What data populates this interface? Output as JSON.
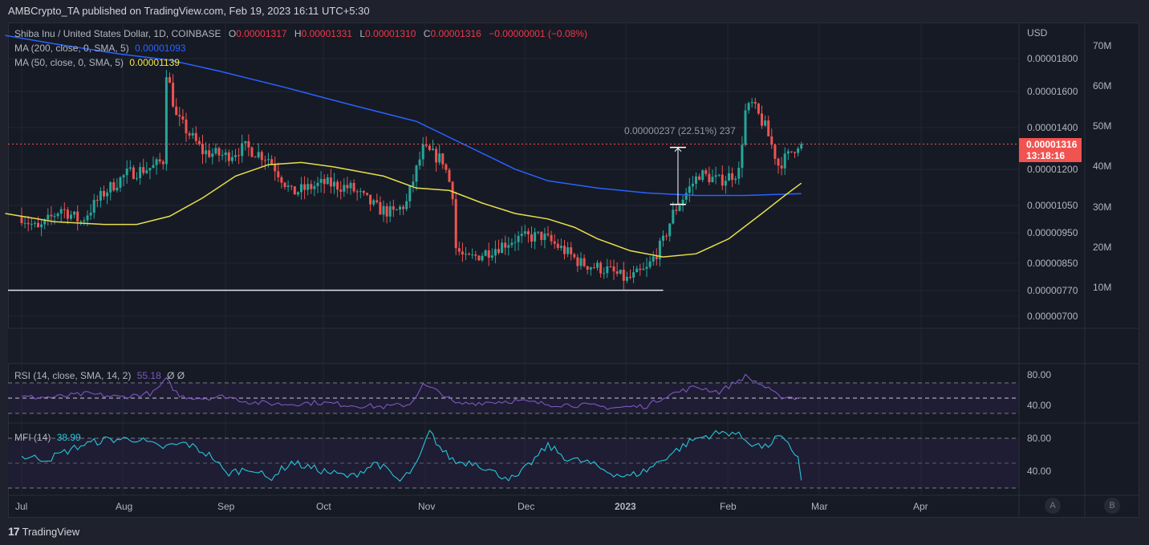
{
  "header": {
    "published": "AMBCrypto_TA published on TradingView.com, Feb 19, 2023 16:11 UTC+5:30"
  },
  "legend": {
    "symbol": "Shiba Inu / United States Dollar, 1D, COINBASE",
    "open_label": "O",
    "open": "0.00001317",
    "high_label": "H",
    "high": "0.00001331",
    "low_label": "L",
    "low": "0.00001310",
    "close_label": "C",
    "close": "0.00001316",
    "change": "−0.00000001 (−0.08%)",
    "ma200_label": "MA (200, close, 0, SMA, 5)",
    "ma200_value": "0.00001093",
    "ma50_label": "MA (50, close, 0, SMA, 5)",
    "ma50_value": "0.00001139",
    "rsi_label": "RSI (14, close, SMA, 14, 2)",
    "rsi_value": "55.18",
    "rsi_extra": "Ø Ø",
    "mfi_label": "MFI (14)",
    "mfi_value": "38.99"
  },
  "price_axis": {
    "currency": "USD",
    "ticks": [
      "0.00001800",
      "0.00001600",
      "0.00001400",
      "0.00001200",
      "0.00001050",
      "0.00000950",
      "0.00000850",
      "0.00000770",
      "0.00000700"
    ],
    "last_price": "0.00001316",
    "countdown": "13:18:16"
  },
  "volume_axis": {
    "ticks": [
      "70M",
      "60M",
      "50M",
      "40M",
      "30M",
      "20M",
      "10M"
    ]
  },
  "rsi_axis": {
    "ticks": [
      "80.00",
      "40.00"
    ]
  },
  "mfi_axis": {
    "ticks": [
      "80.00",
      "40.00"
    ]
  },
  "time_axis": {
    "ticks": [
      "Jul",
      "Aug",
      "Sep",
      "Oct",
      "Nov",
      "Dec",
      "2023",
      "Feb",
      "Mar",
      "Apr"
    ]
  },
  "measure": {
    "label": "0.00000237 (22.51%) 237"
  },
  "scale_buttons": {
    "a": "A",
    "b": "B"
  },
  "footer": {
    "brand": "TradingView",
    "logo": "17"
  },
  "colors": {
    "up": "#26a69a",
    "down": "#ef5350",
    "ma200": "#2962ff",
    "ma50": "#e8de4c",
    "rsi": "#7e57c2",
    "mfi": "#26c6da",
    "last_price": "#f05350",
    "bg": "#161a25"
  },
  "chart_data": {
    "type": "candlestick",
    "title": "Shiba Inu / United States Dollar, 1D, COINBASE",
    "ylabel": "USD",
    "yscale": "log",
    "ylim": [
      6.8e-06,
      1.95e-05
    ],
    "x_ticks": [
      "Jul",
      "Aug",
      "Sep",
      "Oct",
      "Nov",
      "Dec",
      "2023",
      "Feb",
      "Mar",
      "Apr"
    ],
    "last": {
      "open": 1.317e-05,
      "high": 1.331e-05,
      "low": 1.31e-05,
      "close": 1.316e-05,
      "change": -1e-08,
      "change_pct": -0.08
    },
    "support_line": {
      "value": 7.7e-06,
      "from": "2022-07-01",
      "to": "2023-01-08"
    },
    "measure": {
      "delta": 2.37e-06,
      "pct": 22.51,
      "bars": 237,
      "from_price": 1.05e-05,
      "to_price": 1.3e-05
    },
    "candles_sampled": [
      {
        "d": "2022-07-01",
        "c": 1.01e-05
      },
      {
        "d": "2022-07-10",
        "c": 1.04e-05
      },
      {
        "d": "2022-07-20",
        "c": 1.18e-05
      },
      {
        "d": "2022-07-30",
        "c": 1.21e-05
      },
      {
        "d": "2022-08-10",
        "c": 1.24e-05
      },
      {
        "d": "2022-08-14",
        "c": 1.72e-05
      },
      {
        "d": "2022-08-20",
        "c": 1.36e-05
      },
      {
        "d": "2022-08-30",
        "c": 1.26e-05
      },
      {
        "d": "2022-09-10",
        "c": 1.3e-05
      },
      {
        "d": "2022-09-20",
        "c": 1.1e-05
      },
      {
        "d": "2022-10-01",
        "c": 1.12e-05
      },
      {
        "d": "2022-10-15",
        "c": 1.04e-05
      },
      {
        "d": "2022-10-25",
        "c": 1.07e-05
      },
      {
        "d": "2022-10-30",
        "c": 1.29e-05
      },
      {
        "d": "2022-11-07",
        "c": 1.25e-05
      },
      {
        "d": "2022-11-09",
        "c": 9e-06
      },
      {
        "d": "2022-11-20",
        "c": 8.8e-06
      },
      {
        "d": "2022-12-01",
        "c": 9.3e-06
      },
      {
        "d": "2022-12-15",
        "c": 8.4e-06
      },
      {
        "d": "2022-12-30",
        "c": 8e-06
      },
      {
        "d": "2023-01-10",
        "c": 1e-05
      },
      {
        "d": "2023-01-14",
        "c": 1.17e-05
      },
      {
        "d": "2023-01-25",
        "c": 1.16e-05
      },
      {
        "d": "2023-02-04",
        "c": 1.5e-05
      },
      {
        "d": "2023-02-10",
        "c": 1.21e-05
      },
      {
        "d": "2023-02-15",
        "c": 1.33e-05
      },
      {
        "d": "2023-02-19",
        "c": 1.316e-05
      }
    ],
    "series": [
      {
        "name": "MA 200",
        "last": 1.093e-05,
        "points": [
          [
            0,
            2e-05
          ],
          [
            25,
            1.9e-05
          ],
          [
            50,
            1.78e-05
          ],
          [
            75,
            1.65e-05
          ],
          [
            100,
            1.53e-05
          ],
          [
            125,
            1.43e-05
          ],
          [
            150,
            1.28e-05
          ],
          [
            175,
            1.13e-05
          ],
          [
            190,
            1.1e-05
          ],
          [
            210,
            1.08e-05
          ],
          [
            230,
            1.09e-05
          ],
          [
            235,
            1.093e-05
          ]
        ]
      },
      {
        "name": "MA 50",
        "last": 1.139e-05,
        "points": [
          [
            0,
            1.01e-05
          ],
          [
            20,
            9.8e-06
          ],
          [
            40,
            9.8e-06
          ],
          [
            60,
            1.1e-05
          ],
          [
            80,
            1.23e-05
          ],
          [
            100,
            1.23e-05
          ],
          [
            120,
            1.13e-05
          ],
          [
            130,
            1.1e-05
          ],
          [
            150,
            9.7e-06
          ],
          [
            170,
            8.8e-06
          ],
          [
            185,
            8.5e-06
          ],
          [
            200,
            8.9e-06
          ],
          [
            220,
            1.01e-05
          ],
          [
            235,
            1.139e-05
          ]
        ]
      },
      {
        "name": "RSI",
        "last": 55.18,
        "ylim": [
          20,
          90
        ]
      },
      {
        "name": "MFI",
        "last": 38.99,
        "ylim": [
          20,
          90
        ]
      }
    ]
  }
}
